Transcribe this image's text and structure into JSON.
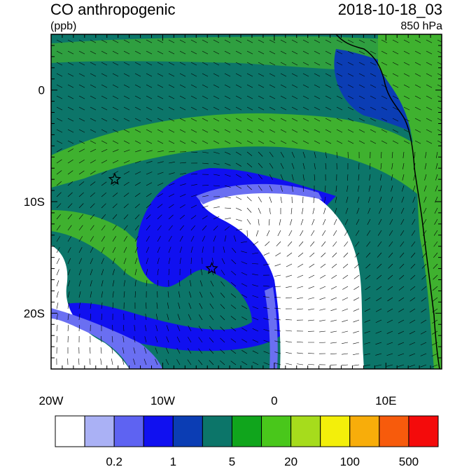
{
  "header": {
    "title": "CO anthropogenic",
    "units": "(ppb)",
    "datetime": "2018-10-18_03",
    "level": "850 hPa"
  },
  "axes": {
    "x_ticks": [
      "20W",
      "10W",
      "0",
      "10E"
    ],
    "y_ticks": [
      "0",
      "10S",
      "20S"
    ],
    "lon_range": [
      -20,
      15
    ],
    "lat_range": [
      -25,
      5
    ]
  },
  "markers": [
    {
      "name": "star",
      "lon": -14.3,
      "lat": -8.0
    },
    {
      "name": "star",
      "lon": -5.6,
      "lat": -16.0
    }
  ],
  "colorbar": {
    "tick_labels": [
      "0.2",
      "1",
      "5",
      "20",
      "100",
      "500"
    ],
    "colors": [
      "#ffffff",
      "#aab1f5",
      "#5e63f2",
      "#1010f0",
      "#0b3db4",
      "#0c7569",
      "#10a51c",
      "#49c71b",
      "#a6dc1c",
      "#f3ef0a",
      "#f8ad0a",
      "#f75b0c",
      "#f40b0b"
    ]
  },
  "map_colors": {
    "ocean_dark_green": "#0c7569",
    "light_green": "#3fb12f",
    "blue": "#0b3db4",
    "bright_blue": "#1010f0",
    "lavender": "#6a6ff2",
    "white": "#ffffff"
  }
}
